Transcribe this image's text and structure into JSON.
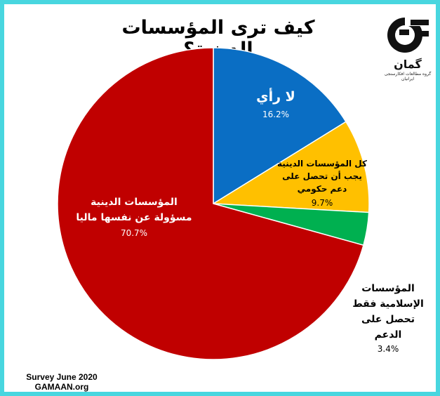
{
  "chart_data": {
    "type": "pie",
    "title": "كيف ترى المؤسسات الدينية؟",
    "slices": [
      {
        "label_lines": [
          "لا رأي"
        ],
        "value": 16.2,
        "value_label": "16.2%",
        "color": "#0a6ec4"
      },
      {
        "label_lines": [
          "كل المؤسسات  الدينية",
          "يجب أن تحصل على",
          "دعم حكومي"
        ],
        "value": 9.7,
        "value_label": "9.7%",
        "color": "#ffc000"
      },
      {
        "label_lines": [
          "المؤسسات",
          "الإسلامية فقط",
          "تحصل على",
          "الدعم"
        ],
        "value": 3.4,
        "value_label": "3.4%",
        "color": "#00b050"
      },
      {
        "label_lines": [
          "المؤسسات الدينية",
          "مسؤولة عن نفسها ماليا"
        ],
        "value": 70.7,
        "value_label": "70.7%",
        "color": "#c00000"
      }
    ]
  },
  "logo": {
    "word": "گمان",
    "subtitle": "گروه مطالعات افکارسنجی ایرانیان"
  },
  "footer": {
    "line1": "Survey June 2020",
    "line2": "GAMAAN.org"
  },
  "colors": {
    "frame": "#48d6df"
  }
}
